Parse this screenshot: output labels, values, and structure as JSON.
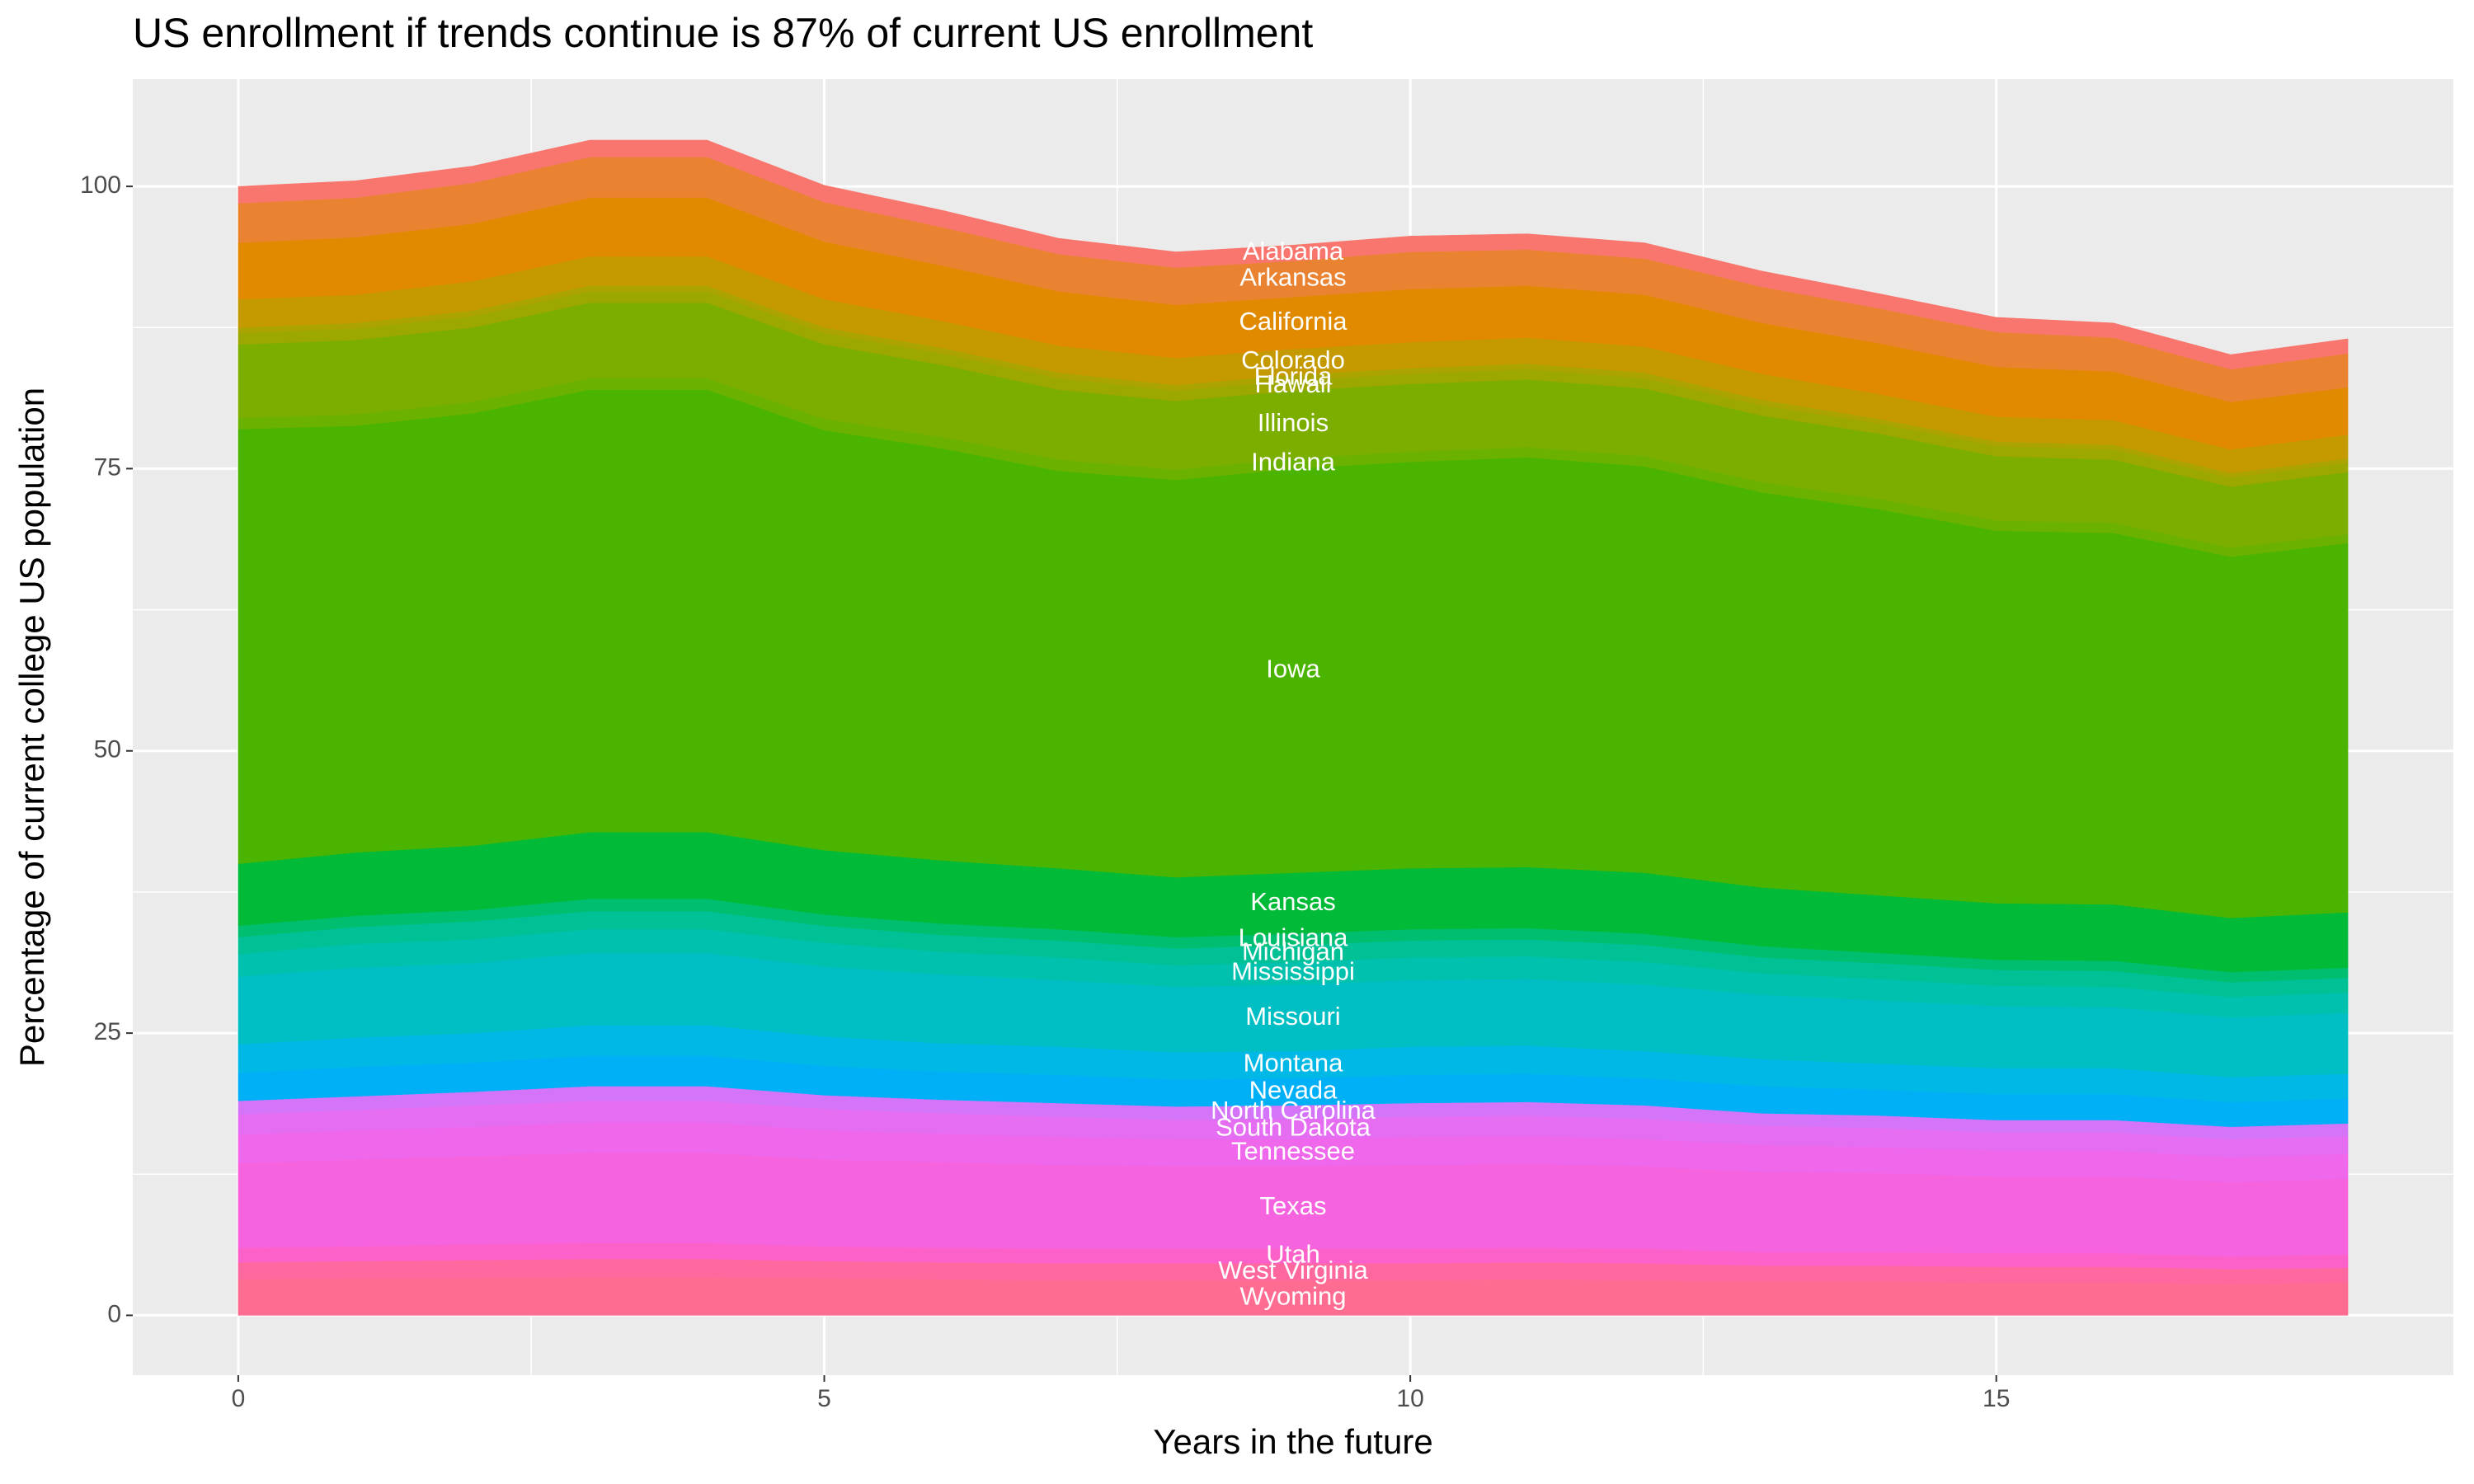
{
  "chart_data": {
    "type": "stacked_area",
    "title": "US enrollment if trends continue is 87% of current US enrollment",
    "x_label": "Years in the future",
    "y_label": "Percentage of current college US population",
    "x": [
      0,
      1,
      2,
      3,
      4,
      5,
      6,
      7,
      8,
      9,
      10,
      11,
      12,
      13,
      14,
      15,
      16,
      17,
      18
    ],
    "xlim": [
      -0.9,
      18.9
    ],
    "xticks": [
      0,
      5,
      10,
      15
    ],
    "ylim": [
      -5.3,
      109.5
    ],
    "yticks": [
      0,
      25,
      50,
      75,
      100
    ],
    "grid": true,
    "label_at_x": 9,
    "series": [
      {
        "name": "Wyoming",
        "color": "#FF6C91",
        "values": [
          3.2,
          3.3,
          3.3,
          3.4,
          3.4,
          3.3,
          3.2,
          3.1,
          3.1,
          3.1,
          3.1,
          3.2,
          3.1,
          3.0,
          3.0,
          2.9,
          2.9,
          2.8,
          2.9
        ]
      },
      {
        "name": "West Virginia",
        "color": "#FF689F",
        "values": [
          1.5,
          1.5,
          1.6,
          1.6,
          1.6,
          1.5,
          1.5,
          1.5,
          1.5,
          1.5,
          1.5,
          1.5,
          1.5,
          1.4,
          1.4,
          1.4,
          1.4,
          1.3,
          1.3
        ]
      },
      {
        "name": "Utah",
        "color": "#FC61C9",
        "values": [
          1.3,
          1.3,
          1.4,
          1.4,
          1.4,
          1.3,
          1.3,
          1.3,
          1.3,
          1.3,
          1.3,
          1.3,
          1.3,
          1.2,
          1.2,
          1.2,
          1.2,
          1.1,
          1.2
        ]
      },
      {
        "name": "Texas",
        "color": "#F663DF",
        "values": [
          7.5,
          7.7,
          7.8,
          8.0,
          8.0,
          7.7,
          7.6,
          7.4,
          7.3,
          7.3,
          7.4,
          7.4,
          7.3,
          7.1,
          7.0,
          6.8,
          6.8,
          6.6,
          6.7
        ]
      },
      {
        "name": "Tennessee",
        "color": "#EF67EB",
        "values": [
          2.5,
          2.6,
          2.6,
          2.7,
          2.7,
          2.6,
          2.5,
          2.5,
          2.4,
          2.4,
          2.5,
          2.5,
          2.4,
          2.4,
          2.3,
          2.3,
          2.3,
          2.2,
          2.2
        ]
      },
      {
        "name": "South Dakota",
        "color": "#E56DF2",
        "values": [
          1.8,
          1.8,
          1.9,
          1.9,
          1.9,
          1.9,
          1.8,
          1.8,
          1.7,
          1.8,
          1.8,
          1.8,
          1.8,
          1.7,
          1.7,
          1.6,
          1.6,
          1.6,
          1.6
        ]
      },
      {
        "name": "North Carolina",
        "color": "#D474F8",
        "values": [
          1.2,
          1.2,
          1.2,
          1.3,
          1.3,
          1.2,
          1.2,
          1.2,
          1.2,
          1.2,
          1.2,
          1.2,
          1.2,
          1.1,
          1.1,
          1.1,
          1.1,
          1.1,
          1.1
        ]
      },
      {
        "name": "Nevada",
        "color": "#00B0F6",
        "values": [
          2.5,
          2.6,
          2.6,
          2.7,
          2.7,
          2.6,
          2.5,
          2.5,
          2.4,
          2.4,
          2.5,
          2.5,
          2.4,
          2.4,
          2.3,
          2.3,
          2.3,
          2.2,
          2.2
        ]
      },
      {
        "name": "Montana",
        "color": "#00B8E5",
        "values": [
          2.5,
          2.6,
          2.6,
          2.7,
          2.7,
          2.6,
          2.5,
          2.5,
          2.4,
          2.4,
          2.5,
          2.5,
          2.4,
          2.4,
          2.3,
          2.3,
          2.3,
          2.2,
          2.2
        ]
      },
      {
        "name": "Missouri",
        "color": "#00BFC4",
        "values": [
          6.0,
          6.2,
          6.2,
          6.4,
          6.4,
          6.2,
          6.1,
          5.9,
          5.8,
          5.9,
          5.9,
          5.9,
          5.9,
          5.7,
          5.6,
          5.5,
          5.4,
          5.3,
          5.4
        ]
      },
      {
        "name": "Mississippi",
        "color": "#00C0AE",
        "values": [
          2.0,
          2.1,
          2.1,
          2.1,
          2.1,
          2.1,
          2.0,
          2.0,
          1.9,
          2.0,
          2.0,
          2.0,
          2.0,
          1.9,
          1.9,
          1.8,
          1.8,
          1.8,
          1.8
        ]
      },
      {
        "name": "Michigan",
        "color": "#00C096",
        "values": [
          1.5,
          1.5,
          1.6,
          1.6,
          1.6,
          1.5,
          1.5,
          1.5,
          1.5,
          1.5,
          1.5,
          1.5,
          1.5,
          1.4,
          1.4,
          1.4,
          1.4,
          1.3,
          1.3
        ]
      },
      {
        "name": "Louisiana",
        "color": "#00BE70",
        "values": [
          1.0,
          1.0,
          1.0,
          1.1,
          1.1,
          1.0,
          1.0,
          1.0,
          1.0,
          1.0,
          1.0,
          1.0,
          1.0,
          1.0,
          0.9,
          0.9,
          0.9,
          0.9,
          0.9
        ]
      },
      {
        "name": "Kansas",
        "color": "#00BA38",
        "values": [
          5.5,
          5.6,
          5.7,
          5.9,
          5.9,
          5.7,
          5.6,
          5.4,
          5.3,
          5.4,
          5.4,
          5.4,
          5.4,
          5.2,
          5.1,
          5.0,
          5.0,
          4.8,
          4.9
        ]
      },
      {
        "name": "Iowa",
        "color": "#4BB400",
        "values": [
          38.5,
          37.8,
          38.3,
          39.2,
          39.2,
          37.2,
          36.5,
          35.2,
          35.2,
          35.8,
          36.0,
          36.3,
          36.0,
          35.0,
          34.2,
          33.0,
          32.9,
          32.0,
          32.7
        ]
      },
      {
        "name": "Indiana",
        "color": "#6BB100",
        "values": [
          1.0,
          1.0,
          1.0,
          1.0,
          1.0,
          1.0,
          1.0,
          1.0,
          0.9,
          0.9,
          0.9,
          0.9,
          0.9,
          0.9,
          0.9,
          0.9,
          0.9,
          0.8,
          0.8
        ]
      },
      {
        "name": "Illinois",
        "color": "#7CAE00",
        "values": [
          6.5,
          6.6,
          6.6,
          6.7,
          6.7,
          6.6,
          6.4,
          6.2,
          6.1,
          6.0,
          6.0,
          6.0,
          6.0,
          5.9,
          5.8,
          5.7,
          5.6,
          5.4,
          5.5
        ]
      },
      {
        "name": "Hawaii",
        "color": "#9CA700",
        "values": [
          1.0,
          1.0,
          1.0,
          1.0,
          1.0,
          1.0,
          1.0,
          1.0,
          0.9,
          0.9,
          0.9,
          0.9,
          0.9,
          0.9,
          0.9,
          0.9,
          0.9,
          0.8,
          0.8
        ]
      },
      {
        "name": "Florida",
        "color": "#ABA300",
        "values": [
          0.5,
          0.5,
          0.5,
          0.5,
          0.5,
          0.5,
          0.5,
          0.5,
          0.5,
          0.5,
          0.5,
          0.5,
          0.5,
          0.5,
          0.4,
          0.4,
          0.4,
          0.4,
          0.4
        ]
      },
      {
        "name": "Colorado",
        "color": "#C49A00",
        "values": [
          2.5,
          2.5,
          2.6,
          2.6,
          2.6,
          2.5,
          2.4,
          2.4,
          2.4,
          2.3,
          2.3,
          2.3,
          2.3,
          2.3,
          2.2,
          2.2,
          2.2,
          2.1,
          2.1
        ]
      },
      {
        "name": "California",
        "color": "#E18A00",
        "values": [
          5.0,
          5.1,
          5.1,
          5.2,
          5.2,
          5.1,
          4.9,
          4.8,
          4.7,
          4.6,
          4.7,
          4.6,
          4.6,
          4.5,
          4.5,
          4.4,
          4.3,
          4.2,
          4.2
        ]
      },
      {
        "name": "Arkansas",
        "color": "#EA8331",
        "values": [
          3.5,
          3.5,
          3.6,
          3.6,
          3.6,
          3.5,
          3.4,
          3.3,
          3.3,
          3.2,
          3.3,
          3.2,
          3.2,
          3.2,
          3.1,
          3.1,
          3.0,
          2.9,
          3.0
        ]
      },
      {
        "name": "Alabama",
        "color": "#F8766D",
        "values": [
          1.5,
          1.5,
          1.5,
          1.5,
          1.5,
          1.5,
          1.5,
          1.4,
          1.4,
          1.4,
          1.4,
          1.4,
          1.4,
          1.4,
          1.3,
          1.3,
          1.3,
          1.3,
          1.3
        ]
      }
    ]
  }
}
